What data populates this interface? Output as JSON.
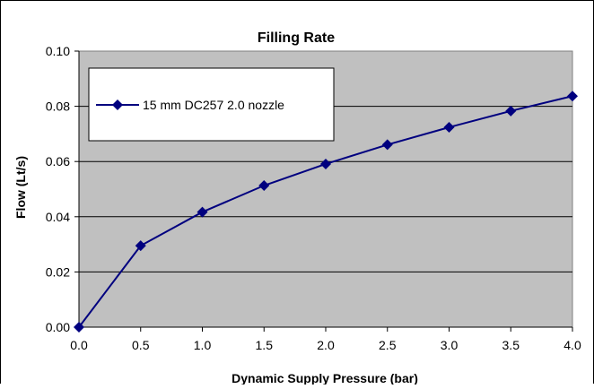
{
  "chart_data": {
    "type": "line",
    "title": "Filling Rate",
    "xlabel": "Dynamic Supply Pressure (bar)",
    "ylabel": "Flow (Lt/s)",
    "xlim": [
      0.0,
      4.0
    ],
    "ylim": [
      0.0,
      0.1
    ],
    "x_ticks": [
      "0.0",
      "0.5",
      "1.0",
      "1.5",
      "2.0",
      "2.5",
      "3.0",
      "3.5",
      "4.0"
    ],
    "y_ticks": [
      "0.00",
      "0.02",
      "0.04",
      "0.06",
      "0.08",
      "0.10"
    ],
    "grid": "horizontal",
    "plot_background": "#c0c0c0",
    "legend_position": "top-left",
    "series": [
      {
        "name": "15 mm DC257 2.0 nozzle",
        "color": "#00007f",
        "marker": "diamond",
        "x": [
          0.0,
          0.5,
          1.0,
          1.5,
          2.0,
          2.5,
          3.0,
          3.5,
          4.0
        ],
        "y": [
          0.0,
          0.0295,
          0.0417,
          0.0513,
          0.0591,
          0.0661,
          0.0724,
          0.0783,
          0.0837
        ]
      }
    ]
  }
}
